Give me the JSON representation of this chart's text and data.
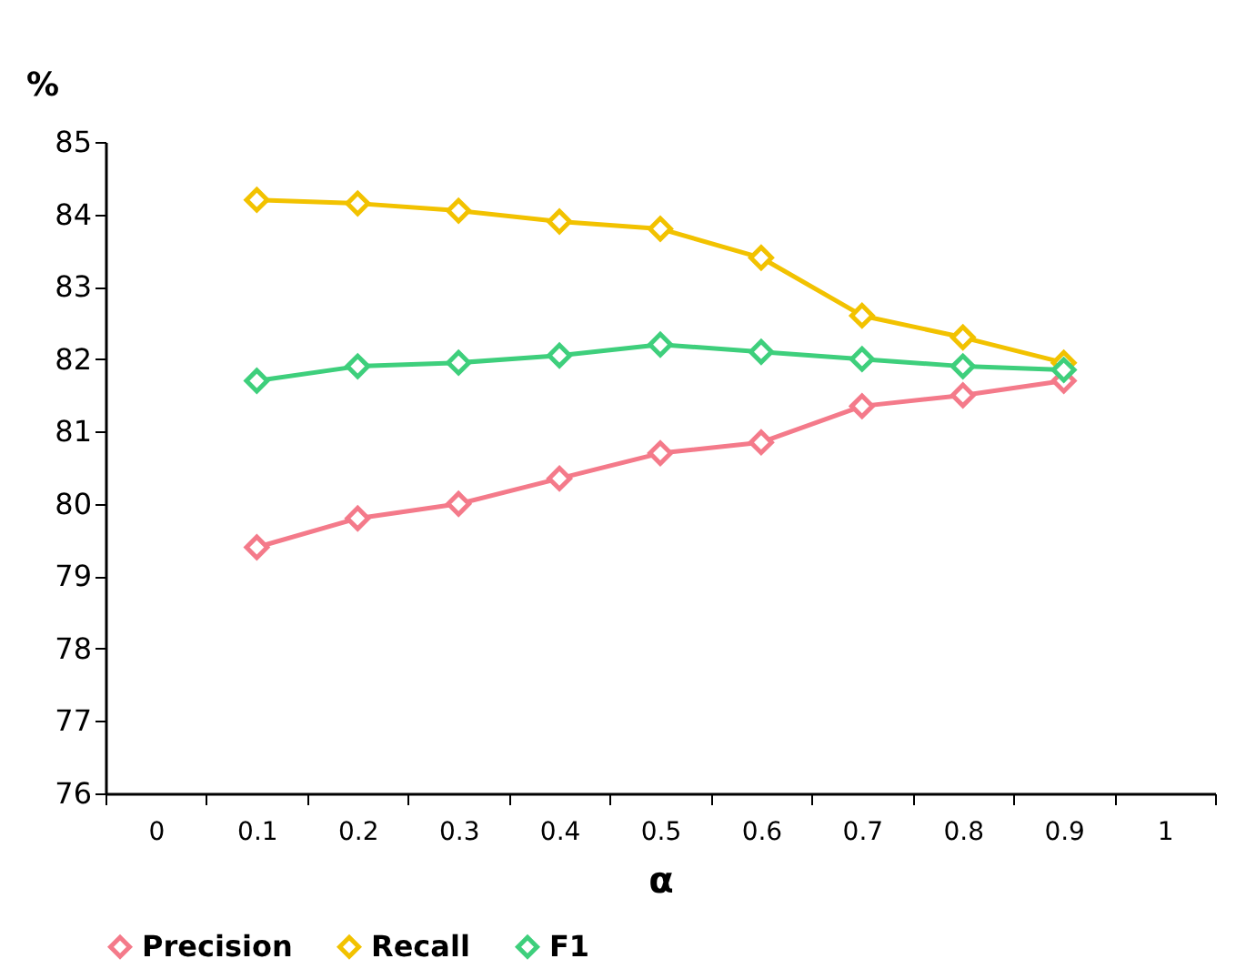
{
  "chart_data": {
    "type": "line",
    "xlabel": "α",
    "ylabel": "%",
    "categories": [
      "0",
      "0.1",
      "0.2",
      "0.3",
      "0.4",
      "0.5",
      "0.6",
      "0.7",
      "0.8",
      "0.9",
      "1"
    ],
    "series": [
      {
        "name": "Precision",
        "color": "#f47a8a",
        "values": [
          null,
          79.4,
          79.8,
          80.0,
          80.35,
          80.7,
          80.85,
          81.35,
          81.5,
          81.7,
          null
        ]
      },
      {
        "name": "Recall",
        "color": "#f2c200",
        "values": [
          null,
          84.2,
          84.15,
          84.05,
          83.9,
          83.8,
          83.4,
          82.6,
          82.3,
          81.95,
          null
        ]
      },
      {
        "name": "F1",
        "color": "#3ecf7c",
        "values": [
          null,
          81.7,
          81.9,
          81.95,
          82.05,
          82.2,
          82.1,
          82.0,
          81.9,
          81.85,
          null
        ]
      }
    ],
    "ylim": [
      76,
      85
    ],
    "yticks": [
      76,
      77,
      78,
      79,
      80,
      81,
      82,
      83,
      84,
      85
    ],
    "grid": false,
    "legend": "bottom",
    "marker": "diamond",
    "line_style": "solid"
  }
}
